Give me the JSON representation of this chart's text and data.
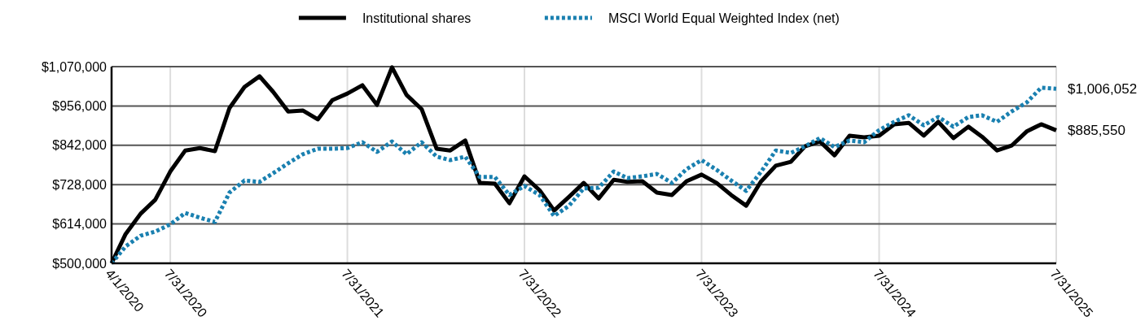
{
  "chart_data": {
    "type": "line",
    "x": [
      "2020-04-01",
      "2020-04-30",
      "2020-05-31",
      "2020-06-30",
      "2020-07-31",
      "2020-08-31",
      "2020-09-30",
      "2020-10-31",
      "2020-11-30",
      "2020-12-31",
      "2021-01-31",
      "2021-02-28",
      "2021-03-31",
      "2021-04-30",
      "2021-05-31",
      "2021-06-30",
      "2021-07-31",
      "2021-08-31",
      "2021-09-30",
      "2021-10-31",
      "2021-11-30",
      "2021-12-31",
      "2022-01-31",
      "2022-02-28",
      "2022-03-31",
      "2022-04-30",
      "2022-05-31",
      "2022-06-30",
      "2022-07-31",
      "2022-08-31",
      "2022-09-30",
      "2022-10-31",
      "2022-11-30",
      "2022-12-31",
      "2023-01-31",
      "2023-02-28",
      "2023-03-31",
      "2023-04-30",
      "2023-05-31",
      "2023-06-30",
      "2023-07-31",
      "2023-08-31",
      "2023-09-30",
      "2023-10-31",
      "2023-11-30",
      "2023-12-31",
      "2024-01-31",
      "2024-02-29",
      "2024-03-31",
      "2024-04-30",
      "2024-05-31",
      "2024-06-30",
      "2024-07-31",
      "2024-08-31",
      "2024-09-30",
      "2024-10-31",
      "2024-11-30",
      "2024-12-31",
      "2025-01-31",
      "2025-02-28",
      "2025-03-31",
      "2025-04-30",
      "2025-05-31",
      "2025-06-30",
      "2025-07-31"
    ],
    "series": [
      {
        "name": "Institutional shares",
        "color": "#000000",
        "line_style": "solid",
        "values": [
          500000,
          585000,
          644000,
          684000,
          766000,
          827000,
          834000,
          825000,
          950000,
          1011000,
          1042000,
          997000,
          940000,
          943000,
          917000,
          973000,
          992000,
          1016000,
          959000,
          1068000,
          988000,
          947000,
          832000,
          827000,
          856000,
          733000,
          731000,
          674000,
          752000,
          712000,
          653000,
          693000,
          733000,
          688000,
          742000,
          736000,
          738000,
          705000,
          698000,
          738000,
          757000,
          733000,
          698000,
          667000,
          736000,
          783000,
          794000,
          839000,
          853000,
          813000,
          870000,
          865000,
          870000,
          903000,
          907000,
          870000,
          910000,
          863000,
          896000,
          867000,
          827000,
          841000,
          882000,
          903000,
          885550
        ],
        "value_labels": [
          null,
          null,
          null,
          null,
          null,
          null,
          null,
          null,
          null,
          null,
          null,
          null,
          null,
          null,
          null,
          null,
          null,
          null,
          null,
          null,
          null,
          null,
          null,
          null,
          null,
          null,
          null,
          null,
          null,
          null,
          null,
          null,
          null,
          null,
          null,
          null,
          null,
          null,
          null,
          null,
          null,
          null,
          null,
          null,
          null,
          null,
          null,
          null,
          null,
          null,
          null,
          null,
          null,
          null,
          null,
          null,
          null,
          null,
          null,
          null,
          null,
          null,
          null,
          null,
          "$885,550"
        ]
      },
      {
        "name": "MSCI World Equal Weighted Index (net)",
        "color": "#1a80b0",
        "line_style": "dotted",
        "values": [
          500000,
          549000,
          580000,
          592000,
          613000,
          646000,
          632000,
          620000,
          705000,
          740000,
          736000,
          761000,
          790000,
          816000,
          832000,
          832000,
          834000,
          851000,
          823000,
          853000,
          816000,
          851000,
          809000,
          799000,
          809000,
          750000,
          750000,
          698000,
          724000,
          698000,
          637000,
          667000,
          717000,
          719000,
          766000,
          747000,
          752000,
          759000,
          733000,
          773000,
          799000,
          771000,
          740000,
          710000,
          764000,
          827000,
          820000,
          839000,
          863000,
          837000,
          856000,
          851000,
          886000,
          910000,
          929000,
          900000,
          924000,
          896000,
          924000,
          929000,
          910000,
          940000,
          966000,
          1009000,
          1006052
        ],
        "value_labels": [
          null,
          null,
          null,
          null,
          null,
          null,
          null,
          null,
          null,
          null,
          null,
          null,
          null,
          null,
          null,
          null,
          null,
          null,
          null,
          null,
          null,
          null,
          null,
          null,
          null,
          null,
          null,
          null,
          null,
          null,
          null,
          null,
          null,
          null,
          null,
          null,
          null,
          null,
          null,
          null,
          null,
          null,
          null,
          null,
          null,
          null,
          null,
          null,
          null,
          null,
          null,
          null,
          null,
          null,
          null,
          null,
          null,
          null,
          null,
          null,
          null,
          null,
          null,
          null,
          "$1,006,052"
        ]
      }
    ],
    "xlim": [
      "2020-04-01",
      "2025-07-31"
    ],
    "xticks": [
      {
        "value": "2020-04-01",
        "label": "4/1/2020"
      },
      {
        "value": "2020-07-31",
        "label": "7/31/2020"
      },
      {
        "value": "2021-07-31",
        "label": "7/31/2021"
      },
      {
        "value": "2022-07-31",
        "label": "7/31/2022"
      },
      {
        "value": "2023-07-31",
        "label": "7/31/2023"
      },
      {
        "value": "2024-07-31",
        "label": "7/31/2024"
      },
      {
        "value": "2025-07-31",
        "label": "7/31/2025"
      }
    ],
    "ylim": [
      500000,
      1070000
    ],
    "yticks": [
      {
        "value": 500000,
        "label": "$500,000"
      },
      {
        "value": 614000,
        "label": "$614,000"
      },
      {
        "value": 728000,
        "label": "$728,000"
      },
      {
        "value": 842000,
        "label": "$842,000"
      },
      {
        "value": 956000,
        "label": "$956,000"
      },
      {
        "value": 1070000,
        "label": "$1,070,000"
      }
    ],
    "grid": true,
    "legend": "top",
    "marker": "none"
  }
}
